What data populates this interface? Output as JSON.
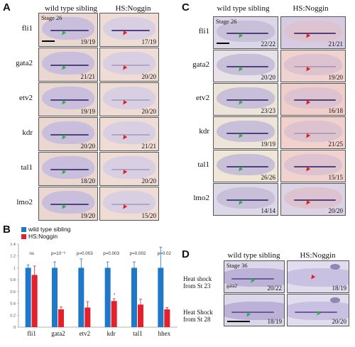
{
  "panels": {
    "A": {
      "label": "A",
      "columns": [
        "wild type sibling",
        "HS:Noggin"
      ],
      "stage": "Stage 26",
      "bg": "#ead7d0",
      "rows": [
        {
          "gene": "fli1",
          "wt": "19/19",
          "hs": "17/19"
        },
        {
          "gene": "gata2",
          "wt": "21/21",
          "hs": "20/20"
        },
        {
          "gene": "etv2",
          "wt": "19/19",
          "hs": "20/20"
        },
        {
          "gene": "kdr",
          "wt": "20/20",
          "hs": "21/21"
        },
        {
          "gene": "tal1",
          "wt": "18/20",
          "hs": "20/20"
        },
        {
          "gene": "lmo2",
          "wt": "19/20",
          "hs": "15/20"
        }
      ]
    },
    "C": {
      "label": "C",
      "columns": [
        "wild type sibling",
        "HS:Noggin"
      ],
      "stage": "Stage 26",
      "rows": [
        {
          "gene": "fli1",
          "wt": "22/22",
          "hs": "21/21"
        },
        {
          "gene": "gata2",
          "wt": "20/20",
          "hs": "19/20"
        },
        {
          "gene": "etv2",
          "wt": "23/23",
          "hs": "16/18"
        },
        {
          "gene": "kdr",
          "wt": "19/19",
          "hs": "21/25"
        },
        {
          "gene": "tal1",
          "wt": "26/26",
          "hs": "15/15"
        },
        {
          "gene": "lmo2",
          "wt": "14/14",
          "hs": "20/20"
        }
      ]
    },
    "B": {
      "label": "B",
      "chart_data": {
        "type": "bar",
        "categories": [
          "fli1",
          "gata2",
          "etv2",
          "kdr",
          "tal1",
          "hhex"
        ],
        "series": [
          {
            "name": "wild type sibling",
            "color": "#1f78c8",
            "values": [
              1.0,
              1.0,
              1.0,
              1.0,
              1.0,
              1.0
            ],
            "errors": [
              0.05,
              0.1,
              0.15,
              0.1,
              0.1,
              0.35
            ]
          },
          {
            "name": "HS:Noggin",
            "color": "#e4202a",
            "values": [
              0.88,
              0.3,
              0.33,
              0.44,
              0.38,
              0.3
            ],
            "errors": [
              0.15,
              0.04,
              0.1,
              0.04,
              0.09,
              0.03
            ]
          }
        ],
        "pvalues": [
          "ns",
          "p=10⁻⁶",
          "p=0.003",
          "p=0.003",
          "p=0.002",
          "p=0.02"
        ],
        "star": "*",
        "ylim": [
          0,
          1.4
        ],
        "yticks": [
          "0",
          "0.2",
          "0.4",
          "0.6",
          "0.8",
          "1",
          "1.2",
          "1.4"
        ]
      }
    },
    "D": {
      "label": "D",
      "columns": [
        "wild type sibling",
        "HS:Noggin"
      ],
      "stage": "Stage 36",
      "gene": "gata2",
      "rows": [
        {
          "label": "Heat shock from St 23",
          "wt": "20/22",
          "hs": "18/19"
        },
        {
          "label": "Heat Shock from St 28",
          "wt": "18/19",
          "hs": "20/20"
        }
      ]
    }
  },
  "colors": {
    "green_arrow": "#2fb34a",
    "red_arrow": "#e2231a",
    "stain": "#3b2a6e"
  }
}
